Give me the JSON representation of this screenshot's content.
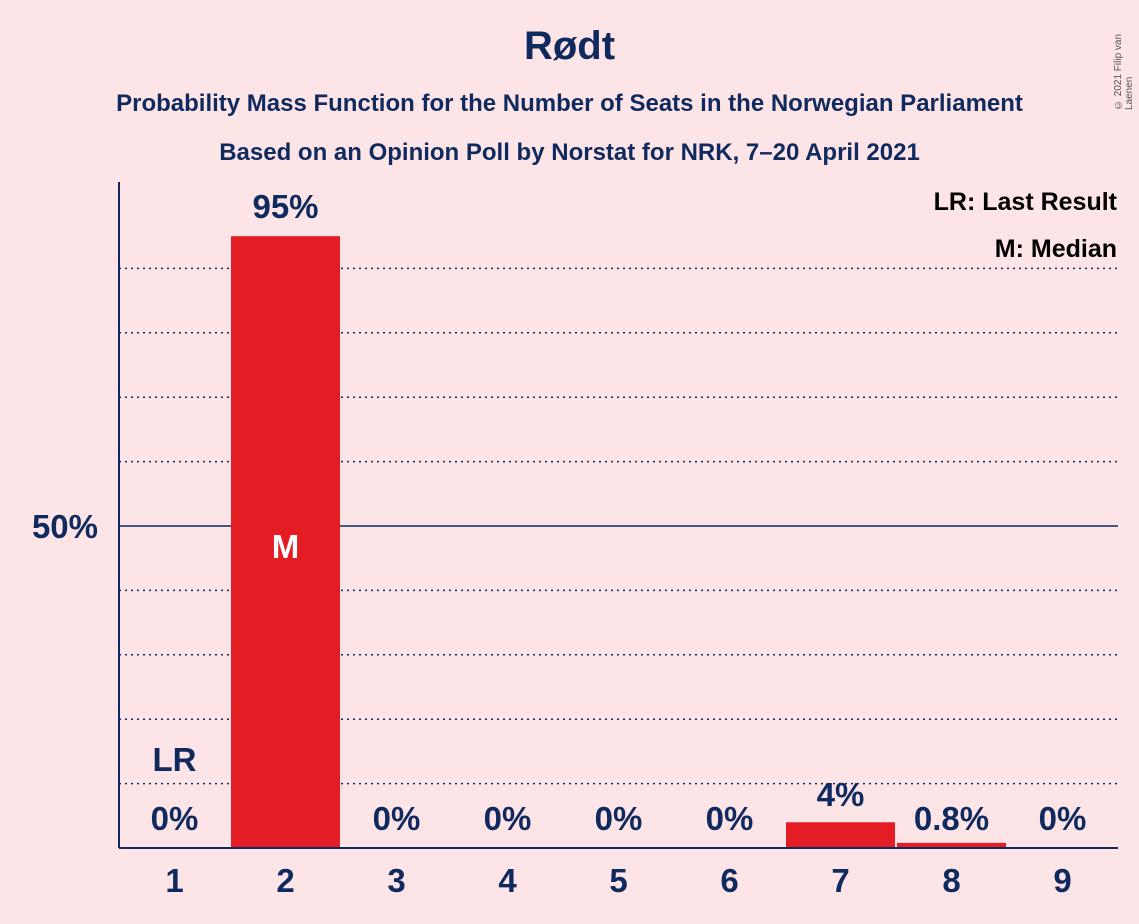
{
  "title": "Rødt",
  "subtitle_line1": "Probability Mass Function for the Number of Seats in the Norwegian Parliament",
  "subtitle_line2": "Based on an Opinion Poll by Norstat for NRK, 7–20 April 2021",
  "copyright": "© 2021 Filip van Laenen",
  "legend": {
    "last_result": "LR: Last Result",
    "median": "M: Median"
  },
  "colors": {
    "background": "#FDE4E6",
    "bar": "#E31D23",
    "text": "#0F2A5E"
  },
  "chart_data": {
    "type": "bar",
    "categories": [
      "1",
      "2",
      "3",
      "4",
      "5",
      "6",
      "7",
      "8",
      "9"
    ],
    "values": [
      0,
      95,
      0,
      0,
      0,
      0,
      4,
      0.8,
      0
    ],
    "labels": [
      "0%",
      "95%",
      "0%",
      "0%",
      "0%",
      "0%",
      "4%",
      "0.8%",
      "0%"
    ],
    "ylim": [
      0,
      100
    ],
    "y_ticks": [
      {
        "value": 50,
        "label": "50%"
      }
    ],
    "gridlines": [
      10,
      20,
      30,
      40,
      60,
      70,
      80,
      90
    ],
    "median_seat": "2",
    "median_marker": "M",
    "last_result_seat": "1",
    "last_result_marker": "LR",
    "legend_position": "top-right"
  }
}
